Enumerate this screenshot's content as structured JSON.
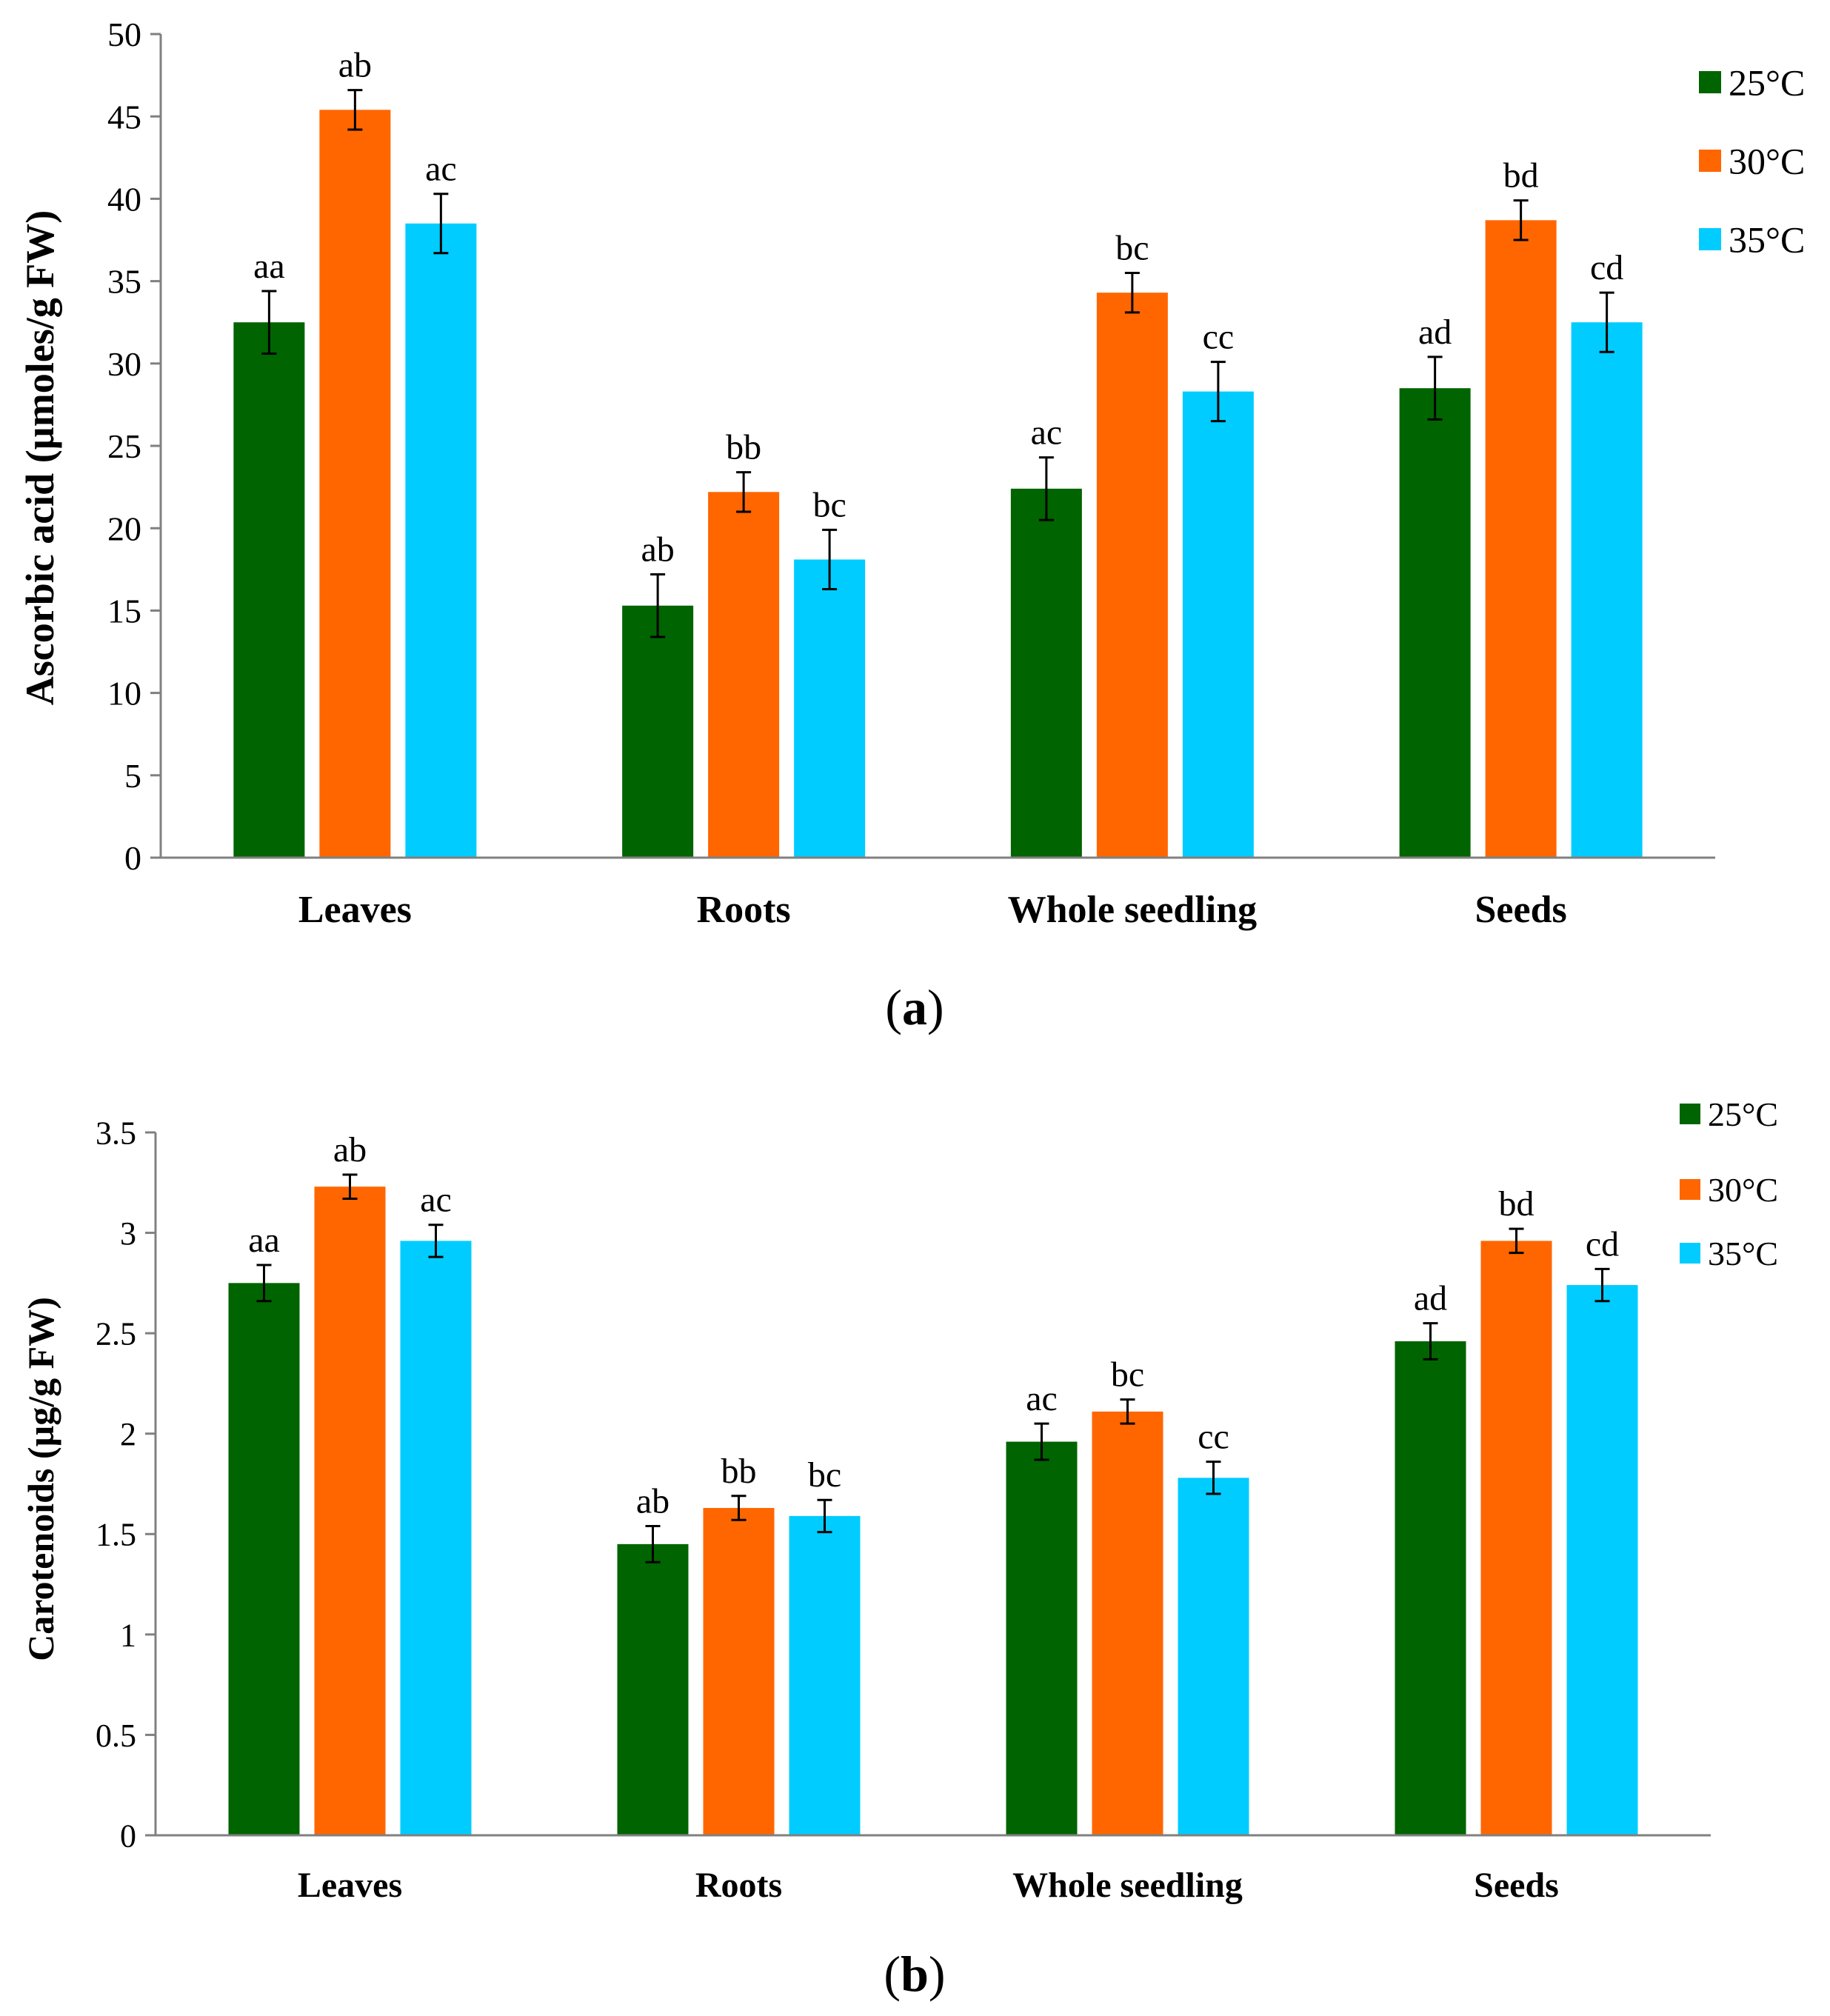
{
  "colors": {
    "25C": "#006400",
    "30C": "#ff6600",
    "35C": "#00ccff"
  },
  "chart_data": [
    {
      "type": "bar",
      "panel_label": "(a)",
      "panel_letter": "a",
      "title": "",
      "xlabel": "",
      "ylabel": "Ascorbic acid (µmoles/g FW)",
      "ylim": [
        0,
        50
      ],
      "yticks": [
        "0",
        "5",
        "10",
        "15",
        "20",
        "25",
        "30",
        "35",
        "40",
        "45",
        "50"
      ],
      "ytick_values": [
        0,
        5,
        10,
        15,
        20,
        25,
        30,
        35,
        40,
        45,
        50
      ],
      "categories": [
        "Leaves",
        "Roots",
        "Whole seedling",
        "Seeds"
      ],
      "legend_position": "top-right",
      "series": [
        {
          "name": "25°C",
          "color_key": "25C",
          "values": [
            32.5,
            15.3,
            22.4,
            28.5
          ],
          "errors": [
            1.9,
            1.9,
            1.9,
            1.9
          ],
          "labels": [
            "aa",
            "ab",
            "ac",
            "ad"
          ]
        },
        {
          "name": "30°C",
          "color_key": "30C",
          "values": [
            45.4,
            22.2,
            34.3,
            38.7
          ],
          "errors": [
            1.2,
            1.2,
            1.2,
            1.2
          ],
          "labels": [
            "ab",
            "bb",
            "bc",
            "bd"
          ]
        },
        {
          "name": "35°C",
          "color_key": "35C",
          "values": [
            38.5,
            18.1,
            28.3,
            32.5
          ],
          "errors": [
            1.8,
            1.8,
            1.8,
            1.8
          ],
          "labels": [
            "ac",
            "bc",
            "cc",
            "cd"
          ]
        }
      ]
    },
    {
      "type": "bar",
      "panel_label": "(b)",
      "panel_letter": "b",
      "title": "",
      "xlabel": "",
      "ylabel": "Carotenoids (µg/g FW)",
      "ylim": [
        0,
        3.5
      ],
      "yticks": [
        "0",
        "0.5",
        "1",
        "1.5",
        "2",
        "2.5",
        "3",
        "3.5"
      ],
      "ytick_values": [
        0,
        0.5,
        1,
        1.5,
        2,
        2.5,
        3,
        3.5
      ],
      "categories": [
        "Leaves",
        "Roots",
        "Whole seedling",
        "Seeds"
      ],
      "legend_position": "top-right",
      "series": [
        {
          "name": "25°C",
          "color_key": "25C",
          "values": [
            2.75,
            1.45,
            1.96,
            2.46
          ],
          "errors": [
            0.09,
            0.09,
            0.09,
            0.09
          ],
          "labels": [
            "aa",
            "ab",
            "ac",
            "ad"
          ]
        },
        {
          "name": "30°C",
          "color_key": "30C",
          "values": [
            3.23,
            1.63,
            2.11,
            2.96
          ],
          "errors": [
            0.06,
            0.06,
            0.06,
            0.06
          ],
          "labels": [
            "ab",
            "bb",
            "bc",
            "bd"
          ]
        },
        {
          "name": "35°C",
          "color_key": "35C",
          "values": [
            2.96,
            1.59,
            1.78,
            2.74
          ],
          "errors": [
            0.08,
            0.08,
            0.08,
            0.08
          ],
          "labels": [
            "ac",
            "bc",
            "cc",
            "cd"
          ]
        }
      ]
    }
  ]
}
